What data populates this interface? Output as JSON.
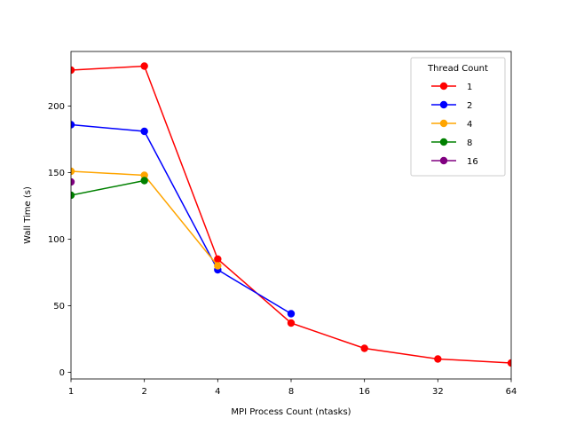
{
  "chart_data": {
    "type": "line",
    "title": "",
    "xlabel": "MPI Process Count (ntasks)",
    "ylabel": "Wall Time (s)",
    "x_scale": "log2",
    "x_ticks": [
      1,
      2,
      4,
      8,
      16,
      32,
      64
    ],
    "x_tick_labels": [
      "1",
      "2",
      "4",
      "8",
      "16",
      "32",
      "64"
    ],
    "xlim": [
      1,
      64
    ],
    "y_ticks": [
      0,
      50,
      100,
      150,
      200
    ],
    "y_tick_labels": [
      "0",
      "50",
      "100",
      "150",
      "200"
    ],
    "ylim": [
      -5,
      241
    ],
    "grid": false,
    "legend": {
      "title": "Thread Count",
      "placement": "top-right"
    },
    "series": [
      {
        "name": "1",
        "color": "#ff0000",
        "x": [
          1,
          2,
          4,
          8,
          16,
          32,
          64
        ],
        "y": [
          227,
          230,
          85,
          37,
          18,
          10,
          7
        ]
      },
      {
        "name": "2",
        "color": "#0000ff",
        "x": [
          1,
          2,
          4,
          8
        ],
        "y": [
          186,
          181,
          77,
          44
        ]
      },
      {
        "name": "4",
        "color": "#ffa500",
        "x": [
          1,
          2,
          4
        ],
        "y": [
          151,
          148,
          80
        ]
      },
      {
        "name": "8",
        "color": "#008000",
        "x": [
          1,
          2
        ],
        "y": [
          133,
          144
        ]
      },
      {
        "name": "16",
        "color": "#800080",
        "x": [
          1
        ],
        "y": [
          143
        ]
      }
    ]
  }
}
